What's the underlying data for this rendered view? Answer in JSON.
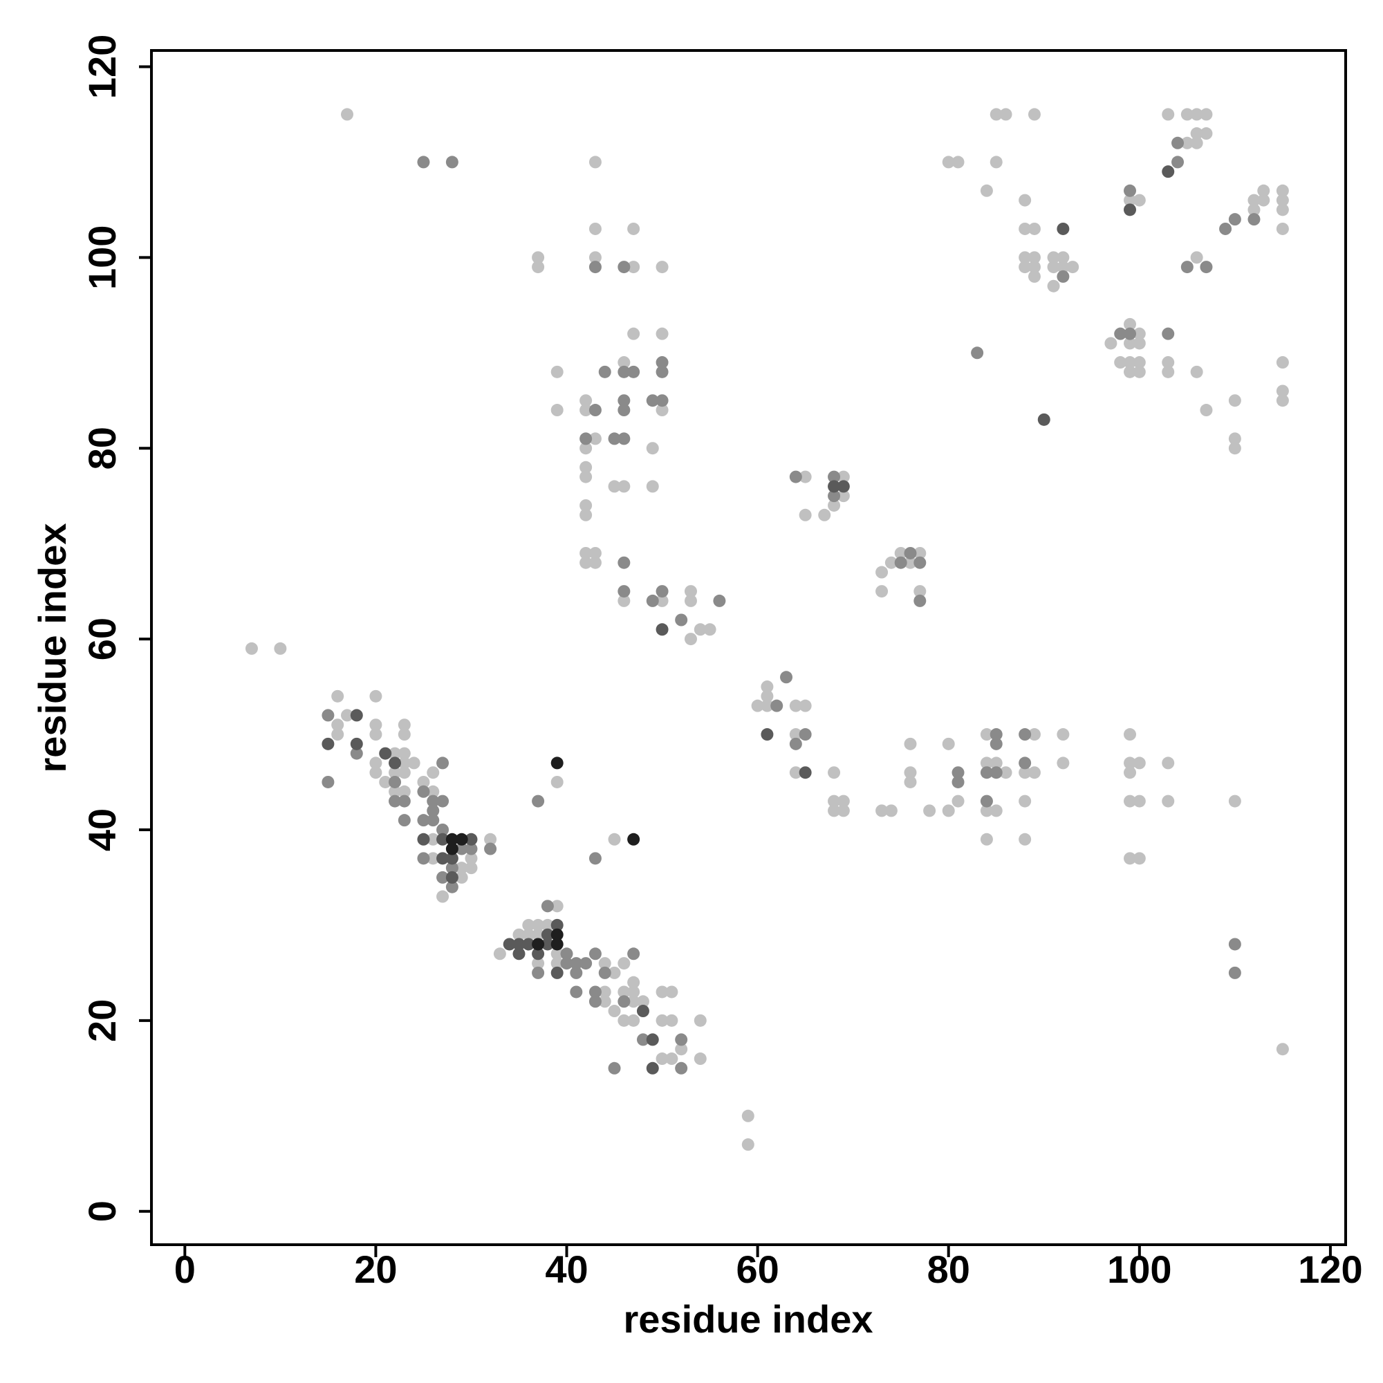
{
  "chart_data": {
    "type": "scatter",
    "xlabel": "residue index",
    "ylabel": "residue index",
    "xlim": [
      -3.5,
      121.6
    ],
    "ylim": [
      -3.5,
      121.7
    ],
    "xticks": [
      0,
      20,
      40,
      60,
      80,
      100,
      120
    ],
    "yticks": [
      0,
      20,
      40,
      60,
      80,
      100,
      120
    ],
    "grid": false,
    "series": [
      {
        "color": "#c0c0c0",
        "x": [
          17,
          7,
          10,
          43,
          37,
          37,
          43,
          43,
          47,
          47,
          50,
          47,
          50,
          39,
          39,
          42,
          42,
          43,
          42,
          42,
          42,
          42,
          42,
          42,
          42,
          43,
          43,
          45,
          46,
          49,
          49,
          46,
          50,
          53,
          53,
          50,
          53,
          54,
          55,
          46,
          59,
          59,
          60,
          61,
          61,
          61,
          64,
          65,
          64,
          64,
          65,
          65,
          67,
          68,
          68,
          69,
          69,
          68,
          68,
          68,
          69,
          69,
          73,
          73,
          74,
          75,
          77,
          76,
          77,
          73,
          74,
          76,
          76,
          76,
          78,
          80,
          80,
          81,
          84,
          84,
          84,
          85,
          84,
          85,
          86,
          88,
          88,
          88,
          89,
          89,
          92,
          92,
          99,
          99,
          99,
          100,
          99,
          100,
          99,
          100,
          103,
          103,
          110,
          80,
          81,
          85,
          84,
          85,
          86,
          89,
          88,
          88,
          89,
          88,
          88,
          89,
          89,
          89,
          91,
          91,
          92,
          91,
          92,
          93,
          97,
          98,
          99,
          99,
          99,
          99,
          100,
          100,
          100,
          100,
          103,
          103,
          106,
          107,
          99,
          100,
          103,
          105,
          106,
          107,
          105,
          106,
          106,
          107,
          106,
          110,
          110,
          110,
          112,
          112,
          113,
          113,
          115,
          115,
          115,
          115,
          115,
          115,
          115,
          115
        ],
        "values": [
          115,
          59,
          59,
          110,
          100,
          99,
          103,
          100,
          103,
          99,
          99,
          92,
          92,
          88,
          84,
          85,
          84,
          81,
          80,
          78,
          77,
          74,
          73,
          69,
          68,
          69,
          68,
          76,
          76,
          80,
          76,
          89,
          84,
          65,
          64,
          64,
          60,
          61,
          61,
          64,
          10,
          7,
          53,
          55,
          54,
          53,
          53,
          53,
          50,
          46,
          77,
          73,
          73,
          74,
          76,
          77,
          75,
          46,
          43,
          42,
          43,
          42,
          67,
          65,
          68,
          69,
          69,
          68,
          65,
          42,
          42,
          49,
          46,
          45,
          42,
          49,
          42,
          43,
          50,
          47,
          42,
          42,
          39,
          47,
          46,
          46,
          43,
          39,
          46,
          50,
          50,
          47,
          50,
          47,
          46,
          47,
          43,
          43,
          37,
          37,
          47,
          43,
          43,
          110,
          110,
          110,
          107,
          115,
          115,
          115,
          106,
          103,
          103,
          100,
          99,
          100,
          99,
          98,
          100,
          99,
          100,
          97,
          99,
          99,
          91,
          89,
          93,
          91,
          89,
          88,
          92,
          91,
          89,
          88,
          89,
          88,
          88,
          84,
          106,
          106,
          115,
          115,
          115,
          115,
          112,
          112,
          113,
          113,
          100,
          85,
          81,
          80,
          106,
          105,
          107,
          106,
          107,
          106,
          105,
          103,
          89,
          86,
          85,
          17
        ]
      },
      {
        "color": "#c0c0c0",
        "x": [
          16,
          16,
          16,
          17,
          20,
          20,
          20,
          20,
          20,
          21,
          22,
          22,
          22,
          23,
          23,
          23,
          23,
          23,
          23,
          24,
          25,
          26,
          26,
          26,
          26,
          27,
          29,
          29,
          30,
          30,
          32,
          33,
          35,
          36,
          36,
          37,
          37,
          37,
          38,
          39,
          39,
          39,
          39,
          44,
          44,
          44,
          45,
          45,
          45,
          46,
          46,
          47,
          47,
          47,
          46,
          47,
          48,
          50,
          51,
          50,
          51,
          50,
          51,
          52,
          54,
          54
        ],
        "values": [
          54,
          51,
          50,
          52,
          54,
          51,
          50,
          47,
          46,
          45,
          48,
          46,
          44,
          51,
          50,
          48,
          47,
          46,
          44,
          47,
          45,
          46,
          44,
          39,
          37,
          33,
          36,
          35,
          37,
          36,
          39,
          27,
          29,
          30,
          29,
          30,
          29,
          26,
          30,
          32,
          27,
          26,
          45,
          26,
          23,
          22,
          21,
          25,
          39,
          23,
          26,
          24,
          23,
          22,
          20,
          20,
          22,
          23,
          23,
          20,
          20,
          16,
          16,
          17,
          20,
          16
        ]
      },
      {
        "color": "#8a8a8a",
        "x": [
          25,
          28,
          43,
          46,
          44,
          46,
          47,
          50,
          50,
          43,
          46,
          46,
          49,
          50,
          42,
          45,
          46,
          46,
          46,
          49,
          50,
          52,
          56,
          64,
          68,
          68,
          63,
          64,
          65,
          62,
          76,
          75,
          77,
          77,
          81,
          81,
          85,
          85,
          84,
          85,
          84,
          88,
          88,
          83,
          92,
          98,
          99,
          103,
          104,
          104,
          99,
          105,
          107,
          110,
          112,
          109,
          110,
          110,
          15,
          15,
          18,
          22,
          22,
          23,
          23,
          25,
          25,
          26,
          26,
          26,
          27,
          27,
          27,
          25,
          27,
          28,
          28,
          29,
          30,
          32,
          37,
          38,
          37,
          40,
          40,
          41,
          41,
          41,
          42,
          43,
          43,
          43,
          44,
          45,
          46,
          47,
          48,
          52,
          52,
          43
        ],
        "values": [
          110,
          110,
          99,
          99,
          88,
          88,
          88,
          89,
          88,
          84,
          85,
          84,
          85,
          85,
          81,
          81,
          81,
          68,
          65,
          64,
          65,
          62,
          64,
          77,
          77,
          75,
          56,
          49,
          50,
          53,
          69,
          68,
          68,
          64,
          46,
          45,
          50,
          49,
          46,
          46,
          43,
          50,
          47,
          90,
          98,
          92,
          92,
          92,
          112,
          110,
          107,
          99,
          99,
          104,
          104,
          103,
          28,
          25,
          52,
          45,
          48,
          43,
          45,
          43,
          41,
          44,
          41,
          43,
          42,
          41,
          47,
          43,
          40,
          37,
          35,
          34,
          36,
          38,
          38,
          38,
          43,
          32,
          25,
          27,
          26,
          26,
          23,
          25,
          26,
          27,
          23,
          22,
          25,
          15,
          22,
          27,
          18,
          18,
          15,
          37
        ]
      },
      {
        "color": "#5a5a5a",
        "x": [
          15,
          18,
          18,
          21,
          22,
          25,
          27,
          27,
          28,
          28,
          30,
          34,
          35,
          35,
          36,
          37,
          38,
          38,
          39,
          39,
          48,
          49,
          49,
          50,
          61,
          65,
          68,
          69,
          92,
          99,
          103,
          90
        ],
        "values": [
          49,
          52,
          49,
          48,
          47,
          39,
          39,
          37,
          37,
          35,
          39,
          28,
          28,
          27,
          28,
          27,
          29,
          28,
          30,
          25,
          21,
          18,
          15,
          61,
          50,
          46,
          76,
          76,
          103,
          105,
          109,
          83
        ]
      },
      {
        "color": "#1e1e1e",
        "x": [
          28,
          29,
          28,
          39,
          39,
          37,
          47,
          39
        ],
        "values": [
          39,
          39,
          38,
          29,
          28,
          28,
          39,
          47
        ]
      }
    ]
  }
}
